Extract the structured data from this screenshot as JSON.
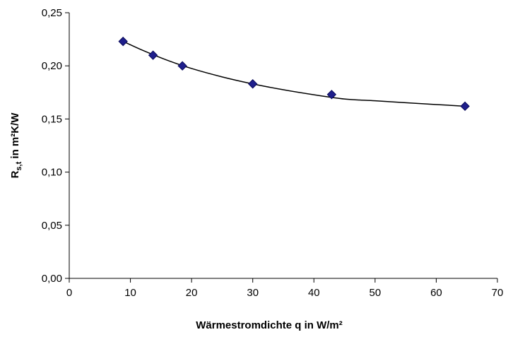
{
  "chart_data": {
    "type": "scatter",
    "title": "",
    "xlabel": "Wärmestromdichte q in W/m²",
    "ylabel": {
      "main": "R",
      "subscript": "s,t",
      "rest": " in m²K/W"
    },
    "xlim": [
      0,
      70
    ],
    "ylim": [
      0,
      0.25
    ],
    "x_ticks": [
      "0",
      "10",
      "20",
      "30",
      "40",
      "50",
      "60",
      "70"
    ],
    "y_ticks": [
      "0,00",
      "0,05",
      "0,10",
      "0,15",
      "0,20",
      "0,25"
    ],
    "grid": false,
    "legend": "none",
    "series": [
      {
        "marker": "diamond",
        "x": [
          8.8,
          13.7,
          18.5,
          30.0,
          42.9,
          64.7
        ],
        "y": [
          0.223,
          0.21,
          0.2,
          0.183,
          0.173,
          0.162
        ]
      }
    ],
    "trendline": {
      "type": "smooth",
      "x": [
        8.8,
        12,
        16,
        20,
        25,
        30,
        35,
        40,
        45,
        50,
        55,
        60,
        64.7
      ],
      "y": [
        0.223,
        0.2146,
        0.2053,
        0.1975,
        0.1896,
        0.183,
        0.1775,
        0.1728,
        0.1688,
        0.1671,
        0.1653,
        0.1636,
        0.162
      ]
    },
    "colors": {
      "marker_fill": "#1f1f8c",
      "marker_stroke": "#0a0a5a",
      "line": "#000000",
      "axis": "#000000"
    }
  }
}
